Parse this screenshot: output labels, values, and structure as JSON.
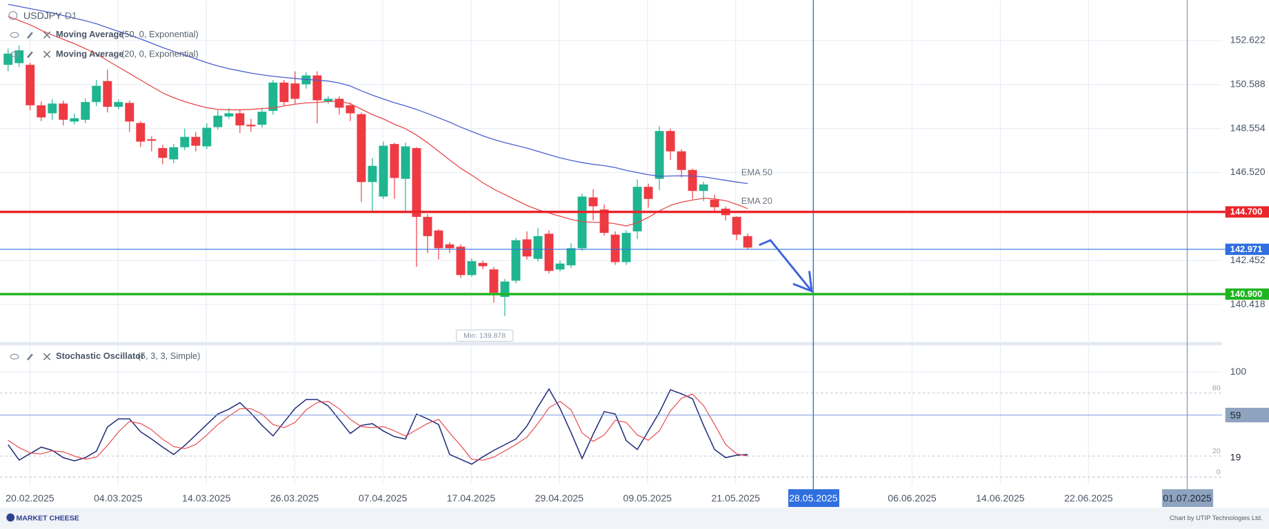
{
  "header": {
    "symbol": "USDJPY",
    "timeframe": "D1"
  },
  "indicators": [
    {
      "name": "Moving Average",
      "params": "(50, 0, Exponential)"
    },
    {
      "name": "Moving Average",
      "params": "(20, 0, Exponential)"
    },
    {
      "name": "Stochastic Oscillator",
      "params": "(5, 3, 3, Simple)"
    }
  ],
  "chart_data": [
    {
      "type": "candlestick",
      "up_color": "#1fb590",
      "down_color": "#ee3a42",
      "open": [
        151.5,
        151.58,
        151.5,
        149.63,
        149.26,
        149.71,
        148.88,
        148.96,
        149.78,
        150.75,
        149.56,
        149.74,
        148.81,
        148.06,
        147.65,
        147.13,
        147.69,
        148.17,
        147.73,
        148.62,
        149.11,
        149.26,
        148.73,
        148.73,
        149.37,
        150.68,
        150.64,
        150.6,
        151.01,
        149.82,
        149.93,
        149.63,
        149.22,
        146.08,
        145.41,
        147.84,
        146.23,
        147.65,
        144.47,
        143.84,
        143.2,
        143.09,
        141.78,
        142.34,
        142.04,
        140.77,
        141.52,
        143.43,
        142.53,
        143.69,
        142.04,
        142.23,
        143.02,
        145.37,
        144.81,
        143.65,
        142.38,
        143.8,
        145.86,
        146.23,
        148.44,
        147.5,
        146.64,
        145.67,
        145.26,
        144.85,
        144.47,
        143.58
      ],
      "high": [
        152.25,
        152.4,
        151.6,
        149.8,
        149.9,
        149.85,
        149.25,
        149.95,
        150.8,
        151.28,
        149.9,
        149.85,
        148.9,
        148.2,
        147.8,
        147.85,
        148.55,
        148.4,
        148.8,
        149.4,
        149.5,
        149.45,
        149.0,
        149.5,
        150.8,
        150.8,
        151.2,
        151.15,
        151.2,
        150.05,
        150.05,
        149.75,
        149.3,
        147.2,
        147.95,
        147.9,
        147.9,
        147.7,
        144.6,
        143.9,
        143.3,
        143.2,
        142.55,
        142.45,
        142.15,
        141.6,
        143.5,
        143.8,
        143.95,
        143.85,
        142.45,
        143.25,
        145.55,
        145.75,
        145.05,
        143.8,
        143.85,
        146.2,
        146.0,
        148.66,
        148.55,
        147.6,
        146.7,
        146.1,
        145.5,
        144.95,
        144.5,
        143.7
      ],
      "low": [
        151.2,
        151.4,
        149.4,
        148.9,
        148.95,
        148.7,
        148.75,
        148.8,
        149.6,
        149.3,
        149.45,
        148.4,
        147.7,
        147.5,
        146.9,
        146.95,
        147.55,
        147.5,
        147.6,
        148.5,
        149.0,
        148.35,
        148.4,
        148.6,
        149.2,
        149.6,
        149.7,
        150.4,
        148.8,
        149.7,
        149.2,
        148.9,
        145.15,
        144.7,
        145.3,
        145.3,
        144.75,
        142.16,
        142.8,
        142.5,
        142.8,
        141.65,
        141.7,
        142.05,
        140.5,
        139.878,
        141.4,
        142.5,
        142.4,
        141.85,
        141.95,
        142.1,
        142.9,
        144.3,
        143.6,
        142.25,
        142.25,
        143.45,
        144.9,
        145.7,
        147.1,
        146.3,
        145.3,
        145.2,
        144.7,
        144.3,
        143.4,
        142.95
      ],
      "close": [
        152.02,
        152.17,
        149.63,
        149.07,
        149.71,
        148.96,
        149.03,
        149.78,
        150.53,
        149.56,
        149.78,
        148.88,
        147.95,
        147.99,
        147.2,
        147.69,
        148.17,
        147.76,
        148.59,
        149.15,
        149.26,
        148.7,
        148.66,
        149.33,
        150.68,
        149.78,
        149.93,
        151.01,
        149.86,
        149.93,
        149.52,
        149.26,
        146.08,
        146.83,
        147.76,
        146.27,
        147.73,
        144.47,
        143.58,
        143.02,
        143.02,
        141.78,
        142.42,
        142.19,
        140.96,
        141.48,
        143.39,
        142.64,
        143.58,
        141.97,
        142.31,
        143.02,
        145.41,
        144.96,
        143.73,
        142.38,
        143.73,
        145.86,
        145.3,
        148.44,
        147.5,
        146.64,
        145.67,
        145.97,
        144.92,
        144.55,
        143.65,
        143.05
      ],
      "series": [
        {
          "name": "EMA 50",
          "color": "#4a5fd0",
          "values": [
            154.3,
            154.2,
            154.1,
            154.0,
            153.9,
            153.78,
            153.66,
            153.54,
            153.4,
            153.22,
            153.05,
            152.88,
            152.7,
            152.5,
            152.3,
            152.12,
            151.95,
            151.78,
            151.6,
            151.45,
            151.32,
            151.22,
            151.12,
            151.04,
            150.97,
            150.92,
            150.87,
            150.83,
            150.79,
            150.75,
            150.66,
            150.52,
            150.3,
            150.1,
            149.92,
            149.75,
            149.6,
            149.44,
            149.25,
            149.05,
            148.85,
            148.62,
            148.42,
            148.22,
            148.05,
            147.9,
            147.78,
            147.65,
            147.5,
            147.35,
            147.2,
            147.08,
            146.98,
            146.9,
            146.84,
            146.75,
            146.62,
            146.52,
            146.42,
            146.35,
            146.36,
            146.37,
            146.36,
            146.32,
            146.24,
            146.16,
            146.08,
            146.01
          ]
        },
        {
          "name": "EMA 20",
          "color": "#e8474b",
          "values": [
            153.74,
            153.55,
            153.35,
            153.1,
            152.88,
            152.68,
            152.48,
            152.25,
            152.0,
            151.7,
            151.4,
            151.1,
            150.8,
            150.5,
            150.2,
            149.98,
            149.8,
            149.65,
            149.52,
            149.44,
            149.42,
            149.42,
            149.44,
            149.48,
            149.5,
            149.6,
            149.68,
            149.74,
            149.76,
            149.8,
            149.82,
            149.7,
            149.45,
            149.2,
            149.0,
            148.75,
            148.55,
            148.25,
            147.9,
            147.5,
            147.1,
            146.72,
            146.4,
            146.05,
            145.75,
            145.5,
            145.25,
            145.0,
            144.8,
            144.65,
            144.5,
            144.35,
            144.25,
            144.22,
            144.22,
            144.15,
            144.05,
            144.2,
            144.45,
            144.75,
            145.0,
            145.15,
            145.25,
            145.33,
            145.3,
            145.22,
            145.05,
            144.85
          ]
        }
      ],
      "ylim": [
        138.68,
        154.49
      ],
      "yticks": [
        140.418,
        142.452,
        {
          "value": 146.52,
          "label": "146.520"
        },
        148.554,
        150.588,
        152.622
      ],
      "grid": true,
      "levels": [
        {
          "value": 144.7,
          "label": "144.700",
          "color": "#e8262b"
        },
        {
          "value": 142.971,
          "color": "#2f6fe0"
        },
        {
          "value": 140.9,
          "label": "140.900",
          "color": "#1fb51f"
        }
      ],
      "min_label": "Min: 139.878"
    },
    {
      "type": "line",
      "series": [
        {
          "color": "#1f2a7a",
          "values": [
            30.8,
            16.2,
            22.3,
            28.5,
            25.4,
            18.5,
            15.4,
            18.5,
            24.6,
            47.7,
            55.4,
            55.4,
            43.1,
            36.2,
            28.5,
            21.5,
            30,
            40,
            50,
            60,
            64.6,
            70.8,
            60.8,
            49.2,
            39.2,
            52.3,
            65.4,
            73.8,
            73.8,
            67.7,
            54.6,
            41.5,
            49.2,
            50.8,
            43.8,
            38.5,
            36.2,
            60,
            55.4,
            50,
            21.5,
            16.9,
            12.3,
            19.2,
            25.4,
            30.8,
            36.2,
            48.5,
            66.9,
            83.8,
            65.4,
            42.3,
            17.7,
            40.8,
            62.3,
            60,
            34.6,
            26.2,
            43.8,
            61.5,
            83.1,
            79.2,
            74.6,
            49.2,
            26.2,
            18.5,
            20.8,
            21.5
          ]
        },
        {
          "color": "#e8474b",
          "values": [
            35,
            28,
            23,
            22,
            25,
            24,
            20,
            17,
            19,
            30,
            43,
            53,
            51,
            45,
            36,
            29,
            27,
            31,
            40,
            50,
            58,
            65,
            65,
            60,
            50,
            47,
            52,
            64,
            71,
            72,
            65,
            55,
            48,
            47,
            48,
            44,
            39,
            45,
            51,
            55,
            42,
            30,
            17,
            16,
            19,
            25,
            31,
            38,
            51,
            66,
            72,
            64,
            42,
            34,
            40,
            54,
            52,
            40,
            35,
            44,
            63,
            75,
            79,
            68,
            50,
            31,
            22,
            20
          ]
        }
      ],
      "ylim": [
        -7.7,
        124.6
      ],
      "yticks": [
        0,
        20,
        80,
        100
      ],
      "value_markers": [
        {
          "value": 59,
          "color": "#8ea3c0"
        },
        {
          "value": 19
        }
      ]
    }
  ],
  "x_axis": {
    "labels": [
      "20.02.2025",
      "04.03.2025",
      "14.03.2025",
      "26.03.2025",
      "07.04.2025",
      "17.04.2025",
      "29.04.2025",
      "09.05.2025",
      "21.05.2025",
      null,
      "06.06.2025",
      "14.06.2025",
      "22.06.2025"
    ],
    "markers": [
      {
        "label": "28.05.2025",
        "color": "#2f6fe0"
      },
      {
        "label": "01.07.2025",
        "color": "#8ea3c0"
      }
    ]
  },
  "footer": {
    "logo": "MARKET CHEESE",
    "credit": "Chart by UTIP Technologies Ltd."
  }
}
